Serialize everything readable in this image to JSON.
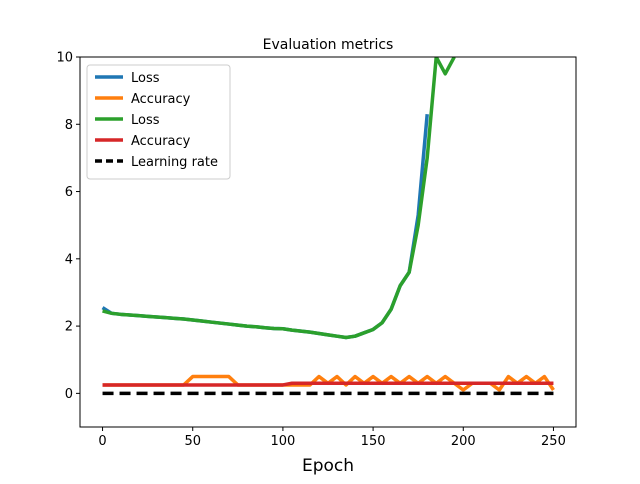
{
  "chart_data": {
    "type": "line",
    "title": "Evaluation metrics",
    "x_label": "Epoch",
    "x": [
      0,
      5,
      10,
      15,
      20,
      25,
      30,
      35,
      40,
      45,
      50,
      55,
      60,
      65,
      70,
      75,
      80,
      85,
      90,
      95,
      100,
      105,
      110,
      115,
      120,
      125,
      130,
      135,
      140,
      145,
      150,
      155,
      160,
      165,
      170,
      175,
      180,
      185,
      190,
      195,
      200,
      205,
      210,
      215,
      220,
      225,
      230,
      235,
      240,
      245,
      250
    ],
    "series": [
      {
        "name": "Loss",
        "color": "#1f77b4",
        "values": [
          2.55,
          2.38,
          2.35,
          2.33,
          2.31,
          2.29,
          2.27,
          2.25,
          2.23,
          2.21,
          2.18,
          2.15,
          2.12,
          2.09,
          2.06,
          2.03,
          2.0,
          1.98,
          1.95,
          1.93,
          1.92,
          1.88,
          1.85,
          1.82,
          1.78,
          1.74,
          1.7,
          1.66,
          1.7,
          1.8,
          1.9,
          2.1,
          2.5,
          3.2,
          3.6,
          5.3,
          8.3,
          null,
          null,
          null,
          null,
          null,
          null,
          null,
          null,
          null,
          null,
          null,
          null,
          null,
          null
        ]
      },
      {
        "name": "Accuracy",
        "color": "#ff7f0e",
        "values": [
          0.25,
          0.25,
          0.25,
          0.25,
          0.25,
          0.25,
          0.25,
          0.25,
          0.25,
          0.25,
          0.5,
          0.5,
          0.5,
          0.5,
          0.5,
          0.25,
          0.25,
          0.25,
          0.25,
          0.25,
          0.25,
          0.25,
          0.25,
          0.25,
          0.5,
          0.3,
          0.5,
          0.25,
          0.5,
          0.3,
          0.5,
          0.3,
          0.5,
          0.3,
          0.5,
          0.3,
          0.5,
          0.3,
          0.5,
          0.3,
          0.1,
          0.3,
          0.3,
          0.3,
          0.1,
          0.5,
          0.3,
          0.5,
          0.3,
          0.5,
          0.1
        ]
      },
      {
        "name": "Loss",
        "color": "#2ca02c",
        "values": [
          2.45,
          2.38,
          2.35,
          2.33,
          2.31,
          2.29,
          2.27,
          2.25,
          2.23,
          2.21,
          2.18,
          2.15,
          2.12,
          2.09,
          2.06,
          2.03,
          2.0,
          1.98,
          1.95,
          1.93,
          1.92,
          1.88,
          1.85,
          1.82,
          1.78,
          1.74,
          1.7,
          1.66,
          1.7,
          1.8,
          1.9,
          2.1,
          2.5,
          3.2,
          3.6,
          5.0,
          7.0,
          10.0,
          9.5,
          10.0,
          null,
          null,
          null,
          null,
          null,
          null,
          null,
          null,
          null,
          null,
          null
        ]
      },
      {
        "name": "Accuracy",
        "color": "#d62728",
        "values": [
          0.25,
          0.25,
          0.25,
          0.25,
          0.25,
          0.25,
          0.25,
          0.25,
          0.25,
          0.25,
          0.25,
          0.25,
          0.25,
          0.25,
          0.25,
          0.25,
          0.25,
          0.25,
          0.25,
          0.25,
          0.25,
          0.3,
          0.3,
          0.3,
          0.3,
          0.3,
          0.3,
          0.3,
          0.3,
          0.3,
          0.3,
          0.3,
          0.3,
          0.3,
          0.3,
          0.3,
          0.3,
          0.3,
          0.3,
          0.3,
          0.3,
          0.3,
          0.3,
          0.3,
          0.3,
          0.3,
          0.3,
          0.3,
          0.3,
          0.3,
          0.3
        ]
      },
      {
        "name": "Learning rate",
        "color": "#000000",
        "dashed": true,
        "values": [
          0,
          0,
          0,
          0,
          0,
          0,
          0,
          0,
          0,
          0,
          0,
          0,
          0,
          0,
          0,
          0,
          0,
          0,
          0,
          0,
          0,
          0,
          0,
          0,
          0,
          0,
          0,
          0,
          0,
          0,
          0,
          0,
          0,
          0,
          0,
          0,
          0,
          0,
          0,
          0,
          0,
          0,
          0,
          0,
          0,
          0,
          0,
          0,
          0,
          0,
          0
        ]
      }
    ],
    "xlim": [
      -12.5,
      262.5
    ],
    "xticks": [
      0,
      50,
      100,
      150,
      200,
      250
    ],
    "ylim": [
      -1,
      10
    ],
    "yticks": [
      0,
      2,
      4,
      6,
      8,
      10
    ],
    "legend": "upper left"
  }
}
